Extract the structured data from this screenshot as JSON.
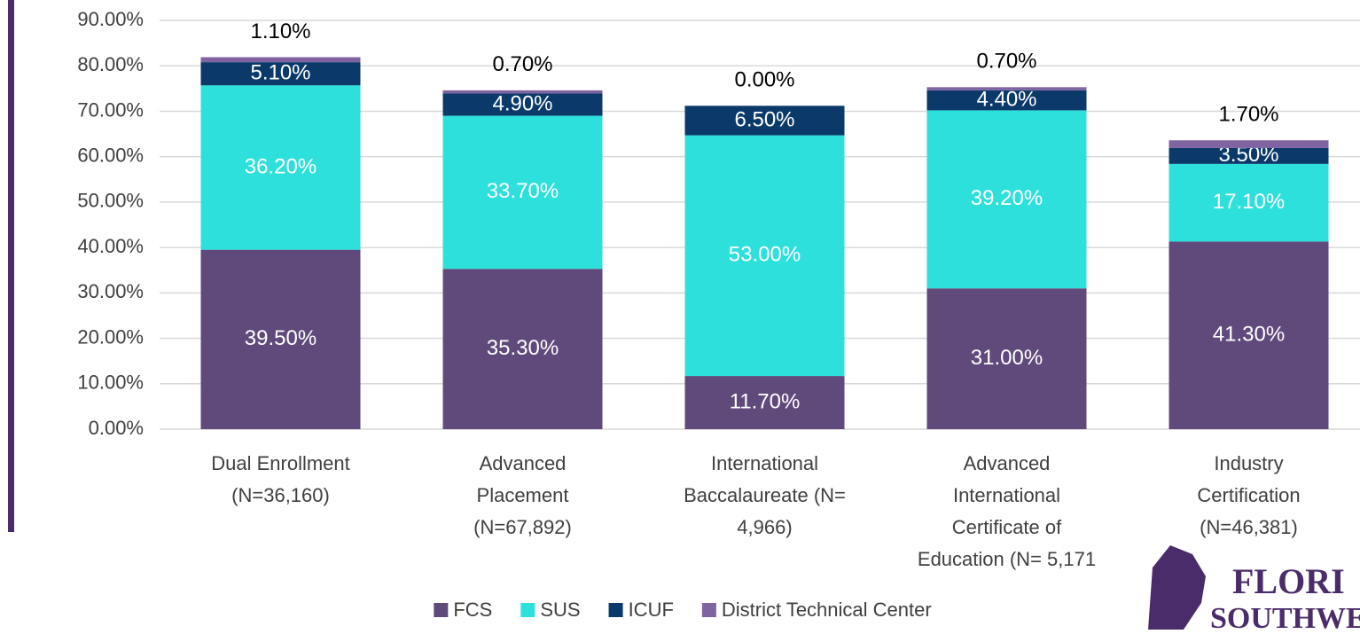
{
  "chart_data": {
    "type": "stacked_bar",
    "categories": [
      "Dual Enrollment\n(N=36,160)",
      "Advanced\nPlacement\n(N=67,892)",
      "International\nBaccalaureate (N=\n4,966)",
      "Advanced\nInternational\nCertificate of\nEducation (N= 5,171",
      "Industry\nCertification\n(N=46,381)"
    ],
    "series": [
      {
        "name": "FCS",
        "color": "#604a7b",
        "values": [
          39.5,
          35.3,
          11.7,
          31.0,
          41.3
        ],
        "value_labels": [
          "39.50%",
          "35.30%",
          "11.70%",
          "31.00%",
          "41.30%"
        ]
      },
      {
        "name": "SUS",
        "color": "#2ee0dc",
        "values": [
          36.2,
          33.7,
          53.0,
          39.2,
          17.1
        ],
        "value_labels": [
          "36.20%",
          "33.70%",
          "53.00%",
          "39.20%",
          "17.10%"
        ]
      },
      {
        "name": "ICUF",
        "color": "#0b3a6a",
        "values": [
          5.1,
          4.9,
          6.5,
          4.4,
          3.5
        ],
        "value_labels": [
          "5.10%",
          "4.90%",
          "6.50%",
          "4.40%",
          "3.50%"
        ]
      },
      {
        "name": "District Technical Center",
        "color": "#8064a2",
        "values": [
          1.1,
          0.7,
          0.0,
          0.7,
          1.7
        ],
        "value_labels": [
          "1.10%",
          "0.70%",
          "0.00%",
          "0.70%",
          "1.70%"
        ]
      }
    ],
    "ylim": [
      0,
      90
    ],
    "yticks": [
      {
        "value": 0,
        "label": "0.00%"
      },
      {
        "value": 10,
        "label": "10.00%"
      },
      {
        "value": 20,
        "label": "20.00%"
      },
      {
        "value": 30,
        "label": "30.00%"
      },
      {
        "value": 40,
        "label": "40.00%"
      },
      {
        "value": 50,
        "label": "50.00%"
      },
      {
        "value": 60,
        "label": "60.00%"
      },
      {
        "value": 70,
        "label": "70.00%"
      },
      {
        "value": 80,
        "label": "80.00%"
      },
      {
        "value": 90,
        "label": "90.00%"
      }
    ],
    "grid": true,
    "legend": "bottom"
  },
  "logo": {
    "line1": "FLORI",
    "line2": "SOUTHWEST"
  }
}
